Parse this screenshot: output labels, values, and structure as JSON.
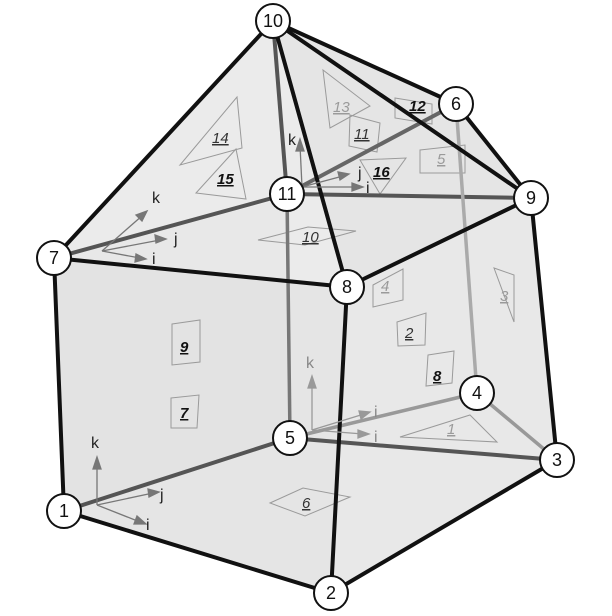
{
  "nodes": [
    {
      "id": "1",
      "label": "1"
    },
    {
      "id": "2",
      "label": "2"
    },
    {
      "id": "3",
      "label": "3"
    },
    {
      "id": "4",
      "label": "4"
    },
    {
      "id": "5",
      "label": "5"
    },
    {
      "id": "6",
      "label": "6"
    },
    {
      "id": "7",
      "label": "7"
    },
    {
      "id": "8",
      "label": "8"
    },
    {
      "id": "9",
      "label": "9"
    },
    {
      "id": "10",
      "label": "10"
    },
    {
      "id": "11",
      "label": "11"
    }
  ],
  "face_labels": [
    {
      "label": "1"
    },
    {
      "label": "2"
    },
    {
      "label": "3"
    },
    {
      "label": "4"
    },
    {
      "label": "5"
    },
    {
      "label": "6"
    },
    {
      "label": "7"
    },
    {
      "label": "8"
    },
    {
      "label": "9"
    },
    {
      "label": "10"
    },
    {
      "label": "11"
    },
    {
      "label": "12"
    },
    {
      "label": "13"
    },
    {
      "label": "14"
    },
    {
      "label": "15"
    },
    {
      "label": "16"
    }
  ],
  "axis_labels": {
    "i": "i",
    "j": "j",
    "k": "k"
  },
  "colors": {
    "edge_front": "#111111",
    "edge_back": "#777777",
    "edge_hidden": "#a8a8a8",
    "face_fill": "#e6e6e6",
    "node_fill": "#ffffff"
  }
}
